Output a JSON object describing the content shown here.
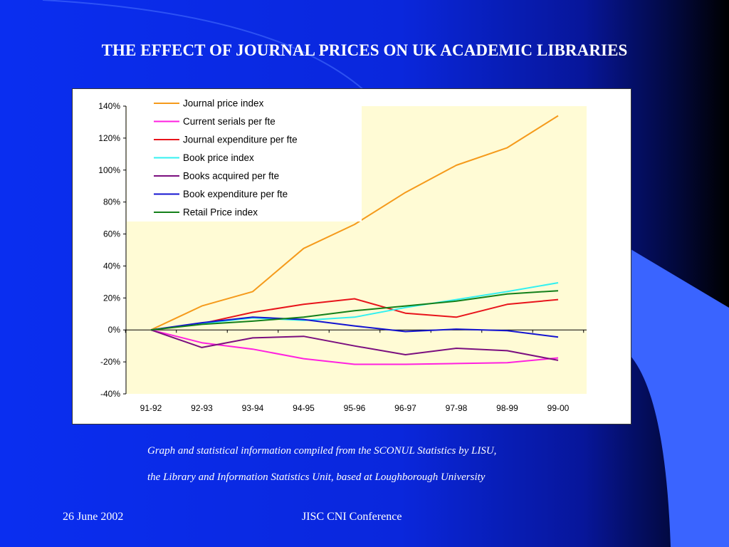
{
  "slide": {
    "title": "THE EFFECT OF JOURNAL PRICES ON UK ACADEMIC LIBRARIES",
    "caption_line1": "Graph and statistical information compiled from the SCONUL Statistics by LISU,",
    "caption_line2": "the Library and Information Statistics Unit, based at Loughborough University",
    "footer_date": "26 June 2002",
    "footer_event": "JISC CNI Conference"
  },
  "colors": {
    "plot_background": "#fffbd5",
    "slide_accent": "#3a64ff"
  },
  "chart_data": {
    "type": "line",
    "title": "",
    "xlabel": "",
    "ylabel": "",
    "categories": [
      "91-92",
      "92-93",
      "93-94",
      "94-95",
      "95-96",
      "96-97",
      "97-98",
      "98-99",
      "99-00"
    ],
    "ylim": [
      -40,
      140
    ],
    "y_ticks": [
      -40,
      -20,
      0,
      20,
      40,
      60,
      80,
      100,
      120,
      140
    ],
    "y_unit": "%",
    "grid": false,
    "legend_position": "top-left",
    "series": [
      {
        "name": "Journal price index",
        "color": "#f59a1b",
        "values": [
          0,
          15,
          24,
          51,
          66,
          86,
          103,
          114,
          134
        ]
      },
      {
        "name": "Current serials per fte",
        "color": "#ff20e0",
        "values": [
          0,
          -8,
          -12,
          -18,
          -21.5,
          -21.5,
          -21,
          -20.5,
          -17.5
        ]
      },
      {
        "name": "Journal expenditure per fte",
        "color": "#e8141b",
        "values": [
          0,
          4,
          11,
          16,
          19.5,
          10.5,
          8,
          16,
          19
        ]
      },
      {
        "name": "Book price index",
        "color": "#33f0f0",
        "values": [
          0,
          4,
          7.5,
          6,
          8,
          14,
          19,
          24,
          29.5
        ]
      },
      {
        "name": "Books acquired per fte",
        "color": "#7b0f7f",
        "values": [
          0,
          -11,
          -5,
          -4,
          -10,
          -15.5,
          -11.5,
          -13,
          -19
        ]
      },
      {
        "name": "Book expenditure per fte",
        "color": "#1414d0",
        "values": [
          0,
          4.5,
          8,
          6.5,
          2.5,
          -1,
          0.5,
          -0.5,
          -4.5
        ]
      },
      {
        "name": "Retail Price index",
        "color": "#14801a",
        "values": [
          0,
          3.5,
          5.5,
          8,
          12,
          15,
          18,
          22.5,
          24.5
        ]
      }
    ]
  }
}
